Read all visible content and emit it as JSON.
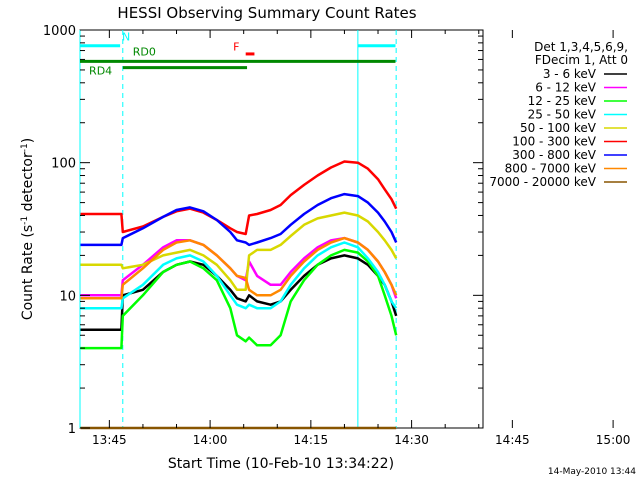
{
  "chart_data": {
    "type": "line",
    "title": "HESSI Observing Summary Count Rates",
    "xlabel": "Start Time (10-Feb-10 13:34:22)",
    "ylabel": "Count Rate (s",
    "ylabel_sup1": "-1",
    "ylabel_mid": " detector",
    "ylabel_sup2": "-1",
    "ylabel_end": ")",
    "date_stamp": "14-May-2010 13:44",
    "y_scale": "log",
    "ylim": [
      1,
      1000
    ],
    "xlim_minutes": [
      -4.37,
      55.63
    ],
    "x_ticks": [
      {
        "label": "13:45",
        "m": 0
      },
      {
        "label": "14:00",
        "m": 15
      },
      {
        "label": "14:15",
        "m": 30
      },
      {
        "label": "14:30",
        "m": 45
      },
      {
        "label": "14:45",
        "m": 60
      },
      {
        "label": "15:00",
        "m": 75
      }
    ],
    "y_ticks": [
      {
        "label": "1",
        "v": 1
      },
      {
        "label": "10",
        "v": 10
      },
      {
        "label": "100",
        "v": 100
      },
      {
        "label": "1000",
        "v": 1000
      }
    ],
    "legend_title": [
      "Det 1,3,4,5,6,9,",
      "FDecim 1, Att 0"
    ],
    "legend_placement": "right",
    "series": [
      {
        "name": "3 - 6 keV",
        "color": "#000000",
        "points": [
          [
            -4.3,
            5.5
          ],
          [
            1.8,
            5.5
          ],
          [
            2.0,
            10
          ],
          [
            5,
            11
          ],
          [
            8,
            15
          ],
          [
            10,
            17
          ],
          [
            12,
            18
          ],
          [
            14,
            17
          ],
          [
            16,
            14
          ],
          [
            18,
            11
          ],
          [
            19,
            9.5
          ],
          [
            20.3,
            9
          ],
          [
            20.8,
            10
          ],
          [
            22,
            9
          ],
          [
            24,
            8.5
          ],
          [
            25.5,
            9
          ],
          [
            27,
            11
          ],
          [
            29,
            14
          ],
          [
            31,
            17
          ],
          [
            33,
            19
          ],
          [
            35,
            20
          ],
          [
            37,
            19
          ],
          [
            38.5,
            17
          ],
          [
            40,
            14
          ],
          [
            41,
            12
          ],
          [
            42,
            9
          ],
          [
            42.7,
            7
          ]
        ]
      },
      {
        "name": "6 - 12 keV",
        "color": "#ff00ff",
        "points": [
          [
            -4.3,
            10
          ],
          [
            1.8,
            10
          ],
          [
            2.0,
            13
          ],
          [
            5,
            17
          ],
          [
            8,
            23
          ],
          [
            10,
            26
          ],
          [
            12,
            26
          ],
          [
            14,
            24
          ],
          [
            16,
            20
          ],
          [
            18,
            16
          ],
          [
            19,
            14
          ],
          [
            20.3,
            13
          ],
          [
            20.8,
            18
          ],
          [
            22,
            14
          ],
          [
            24,
            12
          ],
          [
            25.5,
            12
          ],
          [
            27,
            15
          ],
          [
            29,
            19
          ],
          [
            31,
            23
          ],
          [
            33,
            26
          ],
          [
            35,
            27
          ],
          [
            37,
            25
          ],
          [
            38.5,
            22
          ],
          [
            40,
            18
          ],
          [
            41,
            15
          ],
          [
            42,
            12
          ],
          [
            42.7,
            9.5
          ]
        ]
      },
      {
        "name": "12 - 25 keV",
        "color": "#00ff00",
        "points": [
          [
            -4.3,
            4
          ],
          [
            1.8,
            4
          ],
          [
            2.0,
            7
          ],
          [
            5,
            10
          ],
          [
            8,
            15
          ],
          [
            10,
            17
          ],
          [
            12,
            18
          ],
          [
            14,
            16
          ],
          [
            16,
            13
          ],
          [
            18,
            8
          ],
          [
            19,
            5
          ],
          [
            20.3,
            4.5
          ],
          [
            20.8,
            4.8
          ],
          [
            22,
            4.2
          ],
          [
            24,
            4.2
          ],
          [
            25.5,
            5
          ],
          [
            27,
            9
          ],
          [
            29,
            13
          ],
          [
            31,
            17
          ],
          [
            33,
            20
          ],
          [
            35,
            22
          ],
          [
            37,
            21
          ],
          [
            38.5,
            18
          ],
          [
            40,
            14
          ],
          [
            41,
            10
          ],
          [
            42,
            7
          ],
          [
            42.7,
            5
          ]
        ]
      },
      {
        "name": "25 - 50 keV",
        "color": "#00ffff",
        "points": [
          [
            -4.3,
            8
          ],
          [
            1.8,
            8
          ],
          [
            2.0,
            9.5
          ],
          [
            5,
            12
          ],
          [
            8,
            17
          ],
          [
            10,
            19
          ],
          [
            12,
            20
          ],
          [
            14,
            18
          ],
          [
            16,
            14
          ],
          [
            18,
            10
          ],
          [
            19,
            8.5
          ],
          [
            20.3,
            8
          ],
          [
            20.8,
            8.5
          ],
          [
            22,
            8
          ],
          [
            24,
            8
          ],
          [
            25.5,
            9
          ],
          [
            27,
            12
          ],
          [
            29,
            16
          ],
          [
            31,
            20
          ],
          [
            33,
            23
          ],
          [
            35,
            25
          ],
          [
            37,
            23
          ],
          [
            38.5,
            19
          ],
          [
            40,
            15
          ],
          [
            41,
            12
          ],
          [
            42,
            9
          ],
          [
            42.7,
            8
          ]
        ]
      },
      {
        "name": "50 - 100 keV",
        "color": "#d8d800",
        "points": [
          [
            -4.3,
            17
          ],
          [
            1.8,
            17
          ],
          [
            2.0,
            16
          ],
          [
            5,
            17
          ],
          [
            8,
            20
          ],
          [
            10,
            21
          ],
          [
            12,
            22
          ],
          [
            14,
            20
          ],
          [
            16,
            17
          ],
          [
            18,
            13
          ],
          [
            19,
            11
          ],
          [
            20.3,
            11
          ],
          [
            20.8,
            20
          ],
          [
            22,
            22
          ],
          [
            24,
            22
          ],
          [
            25.5,
            24
          ],
          [
            27,
            28
          ],
          [
            29,
            34
          ],
          [
            31,
            38
          ],
          [
            33,
            40
          ],
          [
            35,
            42
          ],
          [
            37,
            40
          ],
          [
            38.5,
            36
          ],
          [
            40,
            30
          ],
          [
            41,
            26
          ],
          [
            42,
            22
          ],
          [
            42.7,
            19
          ]
        ]
      },
      {
        "name": "100 - 300 keV",
        "color": "#ff0000",
        "points": [
          [
            -4.3,
            41
          ],
          [
            1.8,
            41
          ],
          [
            2.0,
            30
          ],
          [
            5,
            33
          ],
          [
            8,
            39
          ],
          [
            10,
            43
          ],
          [
            12,
            45
          ],
          [
            14,
            42
          ],
          [
            16,
            37
          ],
          [
            18,
            32
          ],
          [
            19,
            30
          ],
          [
            20.3,
            29
          ],
          [
            20.8,
            40
          ],
          [
            22,
            41
          ],
          [
            24,
            44
          ],
          [
            25.5,
            48
          ],
          [
            27,
            57
          ],
          [
            29,
            68
          ],
          [
            31,
            80
          ],
          [
            33,
            92
          ],
          [
            35,
            102
          ],
          [
            37,
            100
          ],
          [
            38.5,
            90
          ],
          [
            40,
            75
          ],
          [
            41,
            63
          ],
          [
            42,
            53
          ],
          [
            42.7,
            45
          ]
        ]
      },
      {
        "name": "300 - 800 keV",
        "color": "#0000ff",
        "points": [
          [
            -4.3,
            24
          ],
          [
            1.8,
            24
          ],
          [
            2.0,
            27
          ],
          [
            5,
            32
          ],
          [
            8,
            39
          ],
          [
            10,
            44
          ],
          [
            12,
            46
          ],
          [
            14,
            43
          ],
          [
            16,
            37
          ],
          [
            18,
            30
          ],
          [
            19,
            26
          ],
          [
            20.3,
            25
          ],
          [
            20.8,
            24
          ],
          [
            22,
            25
          ],
          [
            24,
            27
          ],
          [
            25.5,
            29
          ],
          [
            27,
            34
          ],
          [
            29,
            41
          ],
          [
            31,
            48
          ],
          [
            33,
            54
          ],
          [
            35,
            58
          ],
          [
            37,
            56
          ],
          [
            38.5,
            50
          ],
          [
            40,
            42
          ],
          [
            41,
            36
          ],
          [
            42,
            30
          ],
          [
            42.7,
            25
          ]
        ]
      },
      {
        "name": "800 - 7000 keV",
        "color": "#ff8800",
        "points": [
          [
            -4.3,
            9.5
          ],
          [
            1.8,
            9.5
          ],
          [
            2.0,
            12
          ],
          [
            5,
            16
          ],
          [
            8,
            22
          ],
          [
            10,
            25
          ],
          [
            12,
            26
          ],
          [
            14,
            24
          ],
          [
            16,
            20
          ],
          [
            18,
            16
          ],
          [
            19,
            14
          ],
          [
            20.3,
            13.5
          ],
          [
            20.8,
            11
          ],
          [
            22,
            10
          ],
          [
            24,
            10
          ],
          [
            25.5,
            11
          ],
          [
            27,
            14
          ],
          [
            29,
            18
          ],
          [
            31,
            22
          ],
          [
            33,
            25
          ],
          [
            35,
            27
          ],
          [
            37,
            25
          ],
          [
            38.5,
            22
          ],
          [
            40,
            18
          ],
          [
            41,
            15
          ],
          [
            42,
            12
          ],
          [
            42.7,
            10
          ]
        ]
      },
      {
        "name": "7000 - 20000 keV",
        "color": "#885500",
        "points": [
          [
            -4.3,
            1
          ],
          [
            42.7,
            1
          ]
        ]
      }
    ],
    "vertical_lines": [
      {
        "m": -4.37,
        "style": "solid",
        "color": "#00ffff"
      },
      {
        "m": 2.0,
        "style": "dashed",
        "color": "#00ffff"
      },
      {
        "m": 37.0,
        "style": "solid",
        "color": "#00ffff"
      },
      {
        "m": 42.7,
        "style": "dashed",
        "color": "#00ffff"
      }
    ],
    "flag_bars": [
      {
        "label": "N",
        "color": "#00ffff",
        "level": 760,
        "segments": [
          [
            -4.37,
            1.6
          ],
          [
            37.0,
            42.6
          ]
        ]
      },
      {
        "label": "RD0",
        "color": "#008800",
        "level": 580,
        "segments": [
          [
            -4.37,
            42.6
          ]
        ]
      },
      {
        "label": "RD4",
        "color": "#008800",
        "level": 520,
        "segments": [
          [
            2.0,
            20.5
          ]
        ]
      },
      {
        "label": "F",
        "color": "#ff0000",
        "level": 660,
        "segments": [
          [
            20.3,
            21.6
          ]
        ]
      }
    ],
    "annotations": [
      {
        "text": "N",
        "m": 2.5,
        "v": 830,
        "color": "#00ffff"
      },
      {
        "text": "RD0",
        "m": 5.2,
        "v": 640,
        "color": "#008800"
      },
      {
        "text": "RD4",
        "m": -1.3,
        "v": 460,
        "color": "#008800"
      },
      {
        "text": "F",
        "m": 18.9,
        "v": 700,
        "color": "#ff0000"
      }
    ]
  }
}
